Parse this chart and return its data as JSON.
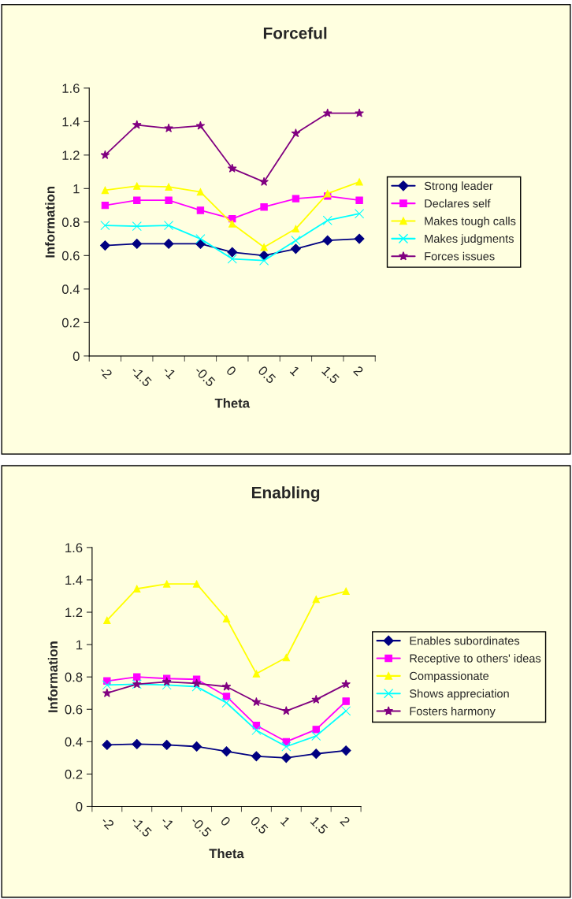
{
  "chart_data": [
    {
      "type": "line",
      "title": "Forceful",
      "xlabel": "Theta",
      "ylabel": "Information",
      "categories": [
        "-2",
        "-1.5",
        "-1",
        "-0.5",
        "0",
        "0.5",
        "1",
        "1.5",
        "2"
      ],
      "ylim": [
        0,
        1.6
      ],
      "yticks": [
        0,
        0.2,
        0.4,
        0.6,
        0.8,
        1,
        1.2,
        1.4,
        1.6
      ],
      "grid": false,
      "legend": "right",
      "series": [
        {
          "name": "Strong leader",
          "color": "#000080",
          "marker": "diamond",
          "values": [
            0.66,
            0.67,
            0.67,
            0.67,
            0.62,
            0.6,
            0.64,
            0.69,
            0.7
          ]
        },
        {
          "name": "Declares self",
          "color": "#ff00ff",
          "marker": "square",
          "values": [
            0.9,
            0.93,
            0.93,
            0.87,
            0.82,
            0.89,
            0.94,
            0.955,
            0.93
          ]
        },
        {
          "name": "Makes tough calls",
          "color": "#ffff00",
          "marker": "triangle",
          "values": [
            0.99,
            1.015,
            1.01,
            0.98,
            0.79,
            0.65,
            0.76,
            0.97,
            1.04
          ]
        },
        {
          "name": "Makes judgments",
          "color": "#00ffff",
          "marker": "cross",
          "values": [
            0.78,
            0.775,
            0.78,
            0.7,
            0.58,
            0.57,
            0.69,
            0.81,
            0.85
          ]
        },
        {
          "name": "Forces issues",
          "color": "#800080",
          "marker": "star",
          "values": [
            1.2,
            1.38,
            1.36,
            1.375,
            1.12,
            1.04,
            1.33,
            1.45,
            1.45
          ]
        }
      ]
    },
    {
      "type": "line",
      "title": "Enabling",
      "xlabel": "Theta",
      "ylabel": "Information",
      "categories": [
        "-2",
        "-1.5",
        "-1",
        "-0.5",
        "0",
        "0.5",
        "1",
        "1.5",
        "2"
      ],
      "ylim": [
        0,
        1.6
      ],
      "yticks": [
        0,
        0.2,
        0.4,
        0.6,
        0.8,
        1,
        1.2,
        1.4,
        1.6
      ],
      "grid": false,
      "legend": "right",
      "series": [
        {
          "name": "Enables subordinates",
          "color": "#000080",
          "marker": "diamond",
          "values": [
            0.38,
            0.385,
            0.38,
            0.37,
            0.34,
            0.31,
            0.3,
            0.325,
            0.345
          ]
        },
        {
          "name": "Receptive to others' ideas",
          "color": "#ff00ff",
          "marker": "square",
          "values": [
            0.775,
            0.8,
            0.79,
            0.785,
            0.68,
            0.5,
            0.4,
            0.475,
            0.65
          ]
        },
        {
          "name": "Compassionate",
          "color": "#ffff00",
          "marker": "triangle",
          "values": [
            1.15,
            1.345,
            1.375,
            1.375,
            1.16,
            0.82,
            0.92,
            1.28,
            1.33
          ]
        },
        {
          "name": "Shows appreciation",
          "color": "#00ffff",
          "marker": "cross",
          "values": [
            0.75,
            0.755,
            0.75,
            0.74,
            0.64,
            0.47,
            0.37,
            0.435,
            0.59
          ]
        },
        {
          "name": "Fosters harmony",
          "color": "#800080",
          "marker": "star",
          "values": [
            0.7,
            0.755,
            0.77,
            0.76,
            0.74,
            0.645,
            0.59,
            0.66,
            0.755
          ]
        }
      ]
    }
  ]
}
